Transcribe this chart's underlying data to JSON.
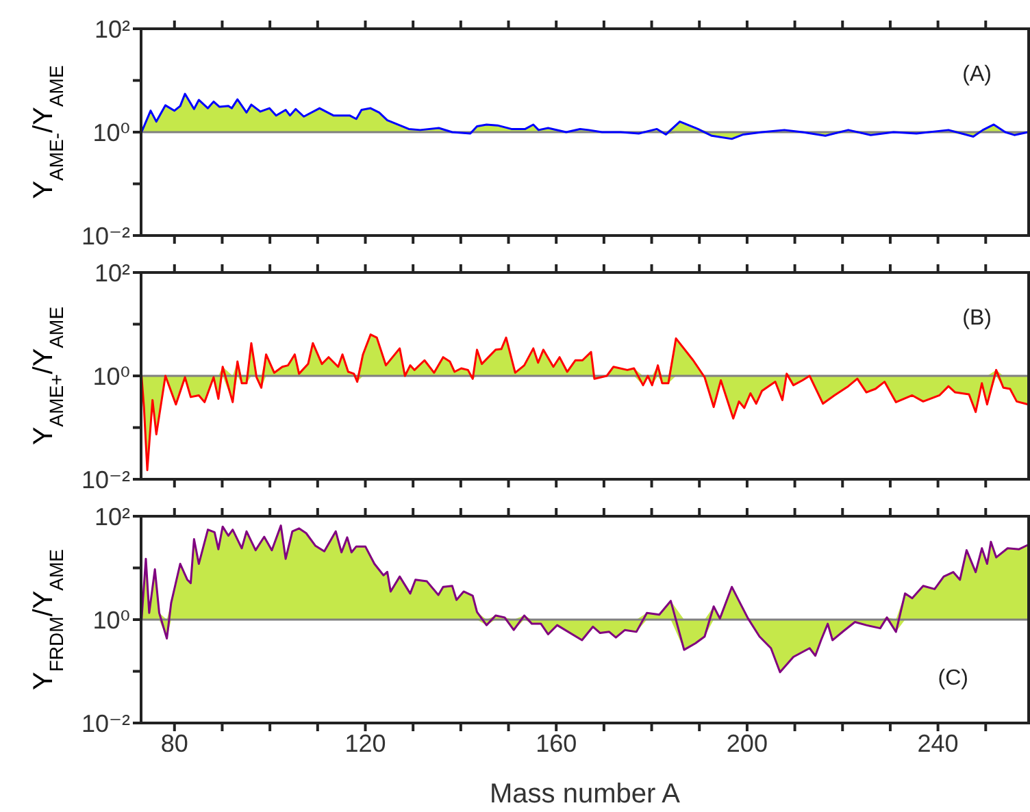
{
  "chart_data": [
    {
      "type": "line",
      "ylabel": "Y$_{AME-}$/Y$_{AME}$",
      "annotations": [
        "(A)"
      ],
      "tick_labels": "y",
      "log": "y",
      "xlim": [
        73,
        259
      ],
      "xticks": [
        {
          "value": 80,
          "label": null
        },
        {
          "value": 90,
          "label": null
        },
        {
          "value": 100,
          "label": null
        },
        {
          "value": 110,
          "label": null
        },
        {
          "value": 120,
          "label": null
        },
        {
          "value": 130,
          "label": null
        },
        {
          "value": 140,
          "label": null
        },
        {
          "value": 150,
          "label": null
        },
        {
          "value": 160,
          "label": null
        },
        {
          "value": 170,
          "label": null
        },
        {
          "value": 180,
          "label": null
        },
        {
          "value": 190,
          "label": null
        },
        {
          "value": 200,
          "label": null
        },
        {
          "value": 210,
          "label": null
        },
        {
          "value": 220,
          "label": null
        },
        {
          "value": 230,
          "label": null
        },
        {
          "value": 240,
          "label": null
        },
        {
          "value": 250,
          "label": null
        }
      ],
      "ylim": [
        0.01,
        100
      ],
      "yticks": [
        {
          "value": 0.01,
          "label": "10⁻²"
        },
        {
          "value": 0.1,
          "label": null
        },
        {
          "value": 1,
          "label": "10⁰"
        },
        {
          "value": 10,
          "label": null
        },
        {
          "value": 100,
          "label": "10²"
        }
      ],
      "ref_lines": [
        {
          "axis": "y",
          "value": 1,
          "color": "#808080"
        }
      ],
      "x": [
        73.1,
        75,
        76.2,
        78.1,
        80,
        81.2,
        82.2,
        84.1,
        85.1,
        87,
        88.2,
        89.4,
        91.3,
        92,
        93.2,
        95.1,
        96.1,
        98,
        99.9,
        101.3,
        103.3,
        104.2,
        105.4,
        107.1,
        110.4,
        113.3,
        116.7,
        118.1,
        119.2,
        121.1,
        122.9,
        124.6,
        127.7,
        129.1,
        131.5,
        135.4,
        138.2,
        142,
        143.4,
        145.4,
        147.7,
        150.6,
        153.5,
        155.2,
        156.3,
        158.3,
        162.1,
        165,
        166.8,
        169.6,
        173.5,
        177.3,
        181.1,
        183,
        185.9,
        189.7,
        192.6,
        196.8,
        199.2,
        203.1,
        207.8,
        211.6,
        216.4,
        221.2,
        225.9,
        230.7,
        235.5,
        242.2,
        247.4,
        249.4,
        251.7,
        254.1,
        256,
        258.9
      ],
      "series": [
        {
          "color": "#0000ff",
          "values": [
            1,
            2.6,
            1.6,
            3.3,
            2.6,
            3.2,
            5.5,
            2.8,
            4.2,
            2.9,
            3.9,
            3.1,
            3.2,
            2.9,
            4.3,
            2.4,
            3.4,
            2.5,
            2.9,
            2.1,
            2.7,
            2.1,
            2.8,
            2,
            2.9,
            2.1,
            2.1,
            1.8,
            2.7,
            2.9,
            2.4,
            1.7,
            1.3,
            1.15,
            1.1,
            1.2,
            1,
            0.94,
            1.3,
            1.4,
            1.35,
            1.15,
            1.15,
            1.4,
            1.1,
            1.2,
            1,
            1.15,
            1.1,
            1,
            1,
            0.94,
            1.15,
            0.9,
            1.6,
            1.15,
            0.85,
            0.74,
            0.9,
            1,
            1.1,
            1,
            0.85,
            1.1,
            0.88,
            1,
            0.94,
            1.1,
            0.82,
            1.1,
            1.4,
            1,
            0.88,
            1
          ],
          "lower": [
            1,
            1,
            1,
            1,
            1,
            1,
            1,
            1,
            1,
            1,
            1,
            1,
            1,
            1,
            1,
            1,
            1,
            1,
            1,
            1,
            1,
            1,
            1,
            1,
            1,
            1,
            1,
            1,
            1,
            1,
            1,
            1,
            1,
            1,
            1,
            1,
            1,
            0.94,
            1,
            1,
            1,
            1,
            1,
            1,
            1,
            1,
            1,
            1,
            1,
            1,
            1,
            0.94,
            1,
            0.9,
            1,
            1,
            0.85,
            0.74,
            0.9,
            1,
            1,
            1,
            0.85,
            1,
            0.88,
            1,
            0.94,
            1,
            0.82,
            1,
            1,
            1,
            0.88,
            1
          ],
          "upper": [
            1,
            2.6,
            1.6,
            3.3,
            2.6,
            3.2,
            5.5,
            2.8,
            4.2,
            2.9,
            3.9,
            3.1,
            3.2,
            2.9,
            4.3,
            2.4,
            3.4,
            2.5,
            2.9,
            2.1,
            2.7,
            2.1,
            2.8,
            2,
            2.9,
            2.1,
            2.1,
            1.8,
            2.7,
            2.9,
            2.4,
            1.7,
            1.3,
            1.15,
            1.1,
            1.2,
            1,
            1,
            1.3,
            1.4,
            1.35,
            1.15,
            1.15,
            1.4,
            1.1,
            1.2,
            1,
            1.15,
            1.1,
            1,
            1,
            1,
            1.15,
            1,
            1.6,
            1.15,
            1,
            1,
            1,
            1,
            1.1,
            1,
            1,
            1.1,
            1,
            1,
            1,
            1.1,
            1,
            1.1,
            1.4,
            1,
            1,
            1
          ]
        }
      ]
    },
    {
      "type": "line",
      "ylabel": "Y$_{AME+}$/Y$_{AME}$",
      "annotations": [
        "(B)"
      ],
      "tick_labels": "y",
      "log": "y",
      "xlim": [
        73,
        259
      ],
      "xticks": [
        {
          "value": 80,
          "label": null
        },
        {
          "value": 90,
          "label": null
        },
        {
          "value": 100,
          "label": null
        },
        {
          "value": 110,
          "label": null
        },
        {
          "value": 120,
          "label": null
        },
        {
          "value": 130,
          "label": null
        },
        {
          "value": 140,
          "label": null
        },
        {
          "value": 150,
          "label": null
        },
        {
          "value": 160,
          "label": null
        },
        {
          "value": 170,
          "label": null
        },
        {
          "value": 180,
          "label": null
        },
        {
          "value": 190,
          "label": null
        },
        {
          "value": 200,
          "label": null
        },
        {
          "value": 210,
          "label": null
        },
        {
          "value": 220,
          "label": null
        },
        {
          "value": 230,
          "label": null
        },
        {
          "value": 240,
          "label": null
        },
        {
          "value": 250,
          "label": null
        }
      ],
      "ylim": [
        0.01,
        100
      ],
      "yticks": [
        {
          "value": 0.01,
          "label": "10⁻²"
        },
        {
          "value": 0.1,
          "label": null
        },
        {
          "value": 1,
          "label": "10⁰"
        },
        {
          "value": 10,
          "label": null
        },
        {
          "value": 100,
          "label": "10²"
        }
      ],
      "ref_lines": [
        {
          "axis": "y",
          "value": 1,
          "color": "#808080"
        }
      ],
      "x": [
        73.1,
        73.6,
        74.3,
        75.4,
        76.2,
        78.1,
        80.3,
        82.2,
        83.4,
        85.1,
        86.3,
        88.2,
        89.2,
        90.1,
        92.2,
        93.2,
        94.1,
        95.1,
        96.1,
        97.2,
        98.2,
        99.2,
        100.9,
        102.6,
        103.8,
        105.2,
        106.1,
        108,
        109,
        110.9,
        112.3,
        114.3,
        115.2,
        116.4,
        117.6,
        118.3,
        119.5,
        121.1,
        122.4,
        124.3,
        127.2,
        128.3,
        129.4,
        130.3,
        132.4,
        134.4,
        136.3,
        137.7,
        138.7,
        140.1,
        141.5,
        142.5,
        143.4,
        144.4,
        147.3,
        148.5,
        149.5,
        151.4,
        153.3,
        155.2,
        156.2,
        157.3,
        159.4,
        160.7,
        162.3,
        164,
        165.5,
        167.3,
        168,
        170.6,
        172,
        174.9,
        176.3,
        178.2,
        179.2,
        180.1,
        181.3,
        182.2,
        183.5,
        185.1,
        188.7,
        191.1,
        193,
        194.5,
        197.1,
        198.3,
        199.4,
        200.7,
        201.9,
        203.1,
        205.9,
        207.4,
        208.3,
        209.7,
        211.6,
        213.1,
        215.9,
        218.3,
        221.2,
        223.1,
        225,
        226.9,
        228.8,
        231.2,
        234.6,
        236.9,
        240.3,
        242.2,
        243.6,
        246.5,
        247.9,
        249.2,
        250.3,
        252.2,
        253.7,
        255.1,
        256.5,
        258.9
      ],
      "series": [
        {
          "color": "#ff0000",
          "values": [
            1,
            0.25,
            0.015,
            0.34,
            0.074,
            1,
            0.28,
            0.94,
            0.39,
            0.42,
            0.31,
            0.94,
            0.36,
            1.5,
            0.31,
            1.9,
            0.72,
            0.72,
            4.3,
            0.94,
            0.59,
            2.6,
            1.15,
            1.5,
            1.6,
            2.6,
            1.1,
            1.7,
            4.3,
            1.7,
            2.3,
            1.5,
            2.6,
            1.2,
            1.1,
            0.77,
            2.6,
            6.3,
            5.5,
            1.6,
            3.4,
            1,
            1.6,
            1.3,
            2,
            1.15,
            2.3,
            1.9,
            1.2,
            1.4,
            1.3,
            0.88,
            3.2,
            1.7,
            3.2,
            3.3,
            5.5,
            1.15,
            1.6,
            3.4,
            1.8,
            3.2,
            1.5,
            2.3,
            1.2,
            2,
            2,
            2.9,
            0.88,
            1,
            1.5,
            1.3,
            1.4,
            0.66,
            1,
            0.66,
            1.6,
            0.72,
            0.72,
            5.3,
            2,
            0.94,
            0.25,
            0.82,
            0.15,
            0.32,
            0.24,
            0.46,
            0.29,
            0.51,
            0.77,
            0.34,
            1.1,
            0.66,
            0.82,
            1,
            0.29,
            0.42,
            0.63,
            0.88,
            0.48,
            0.56,
            0.77,
            0.31,
            0.42,
            0.32,
            0.42,
            0.63,
            0.48,
            0.44,
            0.2,
            0.72,
            0.28,
            1.3,
            0.59,
            0.56,
            0.32,
            0.28
          ],
          "lower": [
            1,
            0.25,
            0.015,
            0.34,
            0.074,
            1,
            0.28,
            0.94,
            0.39,
            0.42,
            0.31,
            0.94,
            0.36,
            1,
            0.31,
            1,
            0.72,
            0.72,
            1,
            0.94,
            0.59,
            1,
            1,
            1,
            1,
            1,
            1,
            1,
            1,
            1,
            1,
            1,
            1,
            1,
            1,
            0.77,
            1,
            1,
            1,
            1,
            1,
            1,
            1,
            1,
            1,
            1,
            1,
            1,
            1,
            1,
            1,
            0.88,
            1,
            1,
            1,
            1,
            1,
            1,
            1,
            1,
            1,
            1,
            1,
            1,
            1,
            1,
            1,
            1,
            0.88,
            1,
            1,
            1,
            1,
            0.66,
            1,
            0.66,
            1,
            0.72,
            0.72,
            1,
            1,
            0.94,
            0.25,
            0.82,
            0.15,
            0.32,
            0.24,
            0.46,
            0.29,
            0.51,
            0.77,
            0.34,
            1,
            0.66,
            0.82,
            1,
            0.29,
            0.42,
            0.63,
            0.88,
            0.48,
            0.56,
            0.77,
            0.31,
            0.42,
            0.32,
            0.42,
            0.63,
            0.48,
            0.44,
            0.2,
            0.72,
            0.28,
            1,
            0.59,
            0.56,
            0.32,
            0.28
          ],
          "upper": [
            1,
            1,
            1,
            1,
            1,
            1,
            1,
            1,
            1,
            1,
            1,
            1,
            1,
            1.5,
            1,
            1.9,
            1,
            1,
            4.3,
            1,
            1,
            2.6,
            1.15,
            1.5,
            1.6,
            2.6,
            1.1,
            1.7,
            4.3,
            1.7,
            2.3,
            1.5,
            2.6,
            1.2,
            1.1,
            1,
            2.6,
            6.3,
            5.5,
            1.6,
            3.4,
            1,
            1.6,
            1.3,
            2,
            1.15,
            2.3,
            1.9,
            1.2,
            1.4,
            1.3,
            1,
            3.2,
            1.7,
            3.2,
            3.3,
            5.5,
            1.15,
            1.6,
            3.4,
            1.8,
            3.2,
            1.5,
            2.3,
            1.2,
            2,
            2,
            2.9,
            1,
            1,
            1.5,
            1.3,
            1.4,
            1,
            1,
            1,
            1.6,
            1,
            1,
            5.3,
            2,
            1,
            1,
            1,
            1,
            1,
            1,
            1,
            1,
            1,
            1,
            1,
            1.1,
            1,
            1,
            1,
            1,
            1,
            1,
            1,
            1,
            1,
            1,
            1,
            1,
            1,
            1,
            1,
            1,
            1,
            1,
            1,
            1,
            1.3,
            1,
            1,
            1,
            1
          ]
        }
      ]
    },
    {
      "type": "line",
      "ylabel": "Y$_{FRDM}$/Y$_{AME}$",
      "xlabel": "Mass number A",
      "annotations": [
        "(C)"
      ],
      "log": "y",
      "xlim": [
        73,
        259
      ],
      "xticks": [
        {
          "value": 80,
          "label": "80"
        },
        {
          "value": 90,
          "label": null
        },
        {
          "value": 100,
          "label": null
        },
        {
          "value": 110,
          "label": null
        },
        {
          "value": 120,
          "label": "120"
        },
        {
          "value": 130,
          "label": null
        },
        {
          "value": 140,
          "label": null
        },
        {
          "value": 150,
          "label": null
        },
        {
          "value": 160,
          "label": "160"
        },
        {
          "value": 170,
          "label": null
        },
        {
          "value": 180,
          "label": null
        },
        {
          "value": 190,
          "label": null
        },
        {
          "value": 200,
          "label": "200"
        },
        {
          "value": 210,
          "label": null
        },
        {
          "value": 220,
          "label": null
        },
        {
          "value": 230,
          "label": null
        },
        {
          "value": 240,
          "label": "240"
        },
        {
          "value": 250,
          "label": null
        }
      ],
      "ylim": [
        0.01,
        100
      ],
      "yticks": [
        {
          "value": 0.01,
          "label": "10⁻²"
        },
        {
          "value": 0.1,
          "label": null
        },
        {
          "value": 1,
          "label": "10⁰"
        },
        {
          "value": 10,
          "label": null
        },
        {
          "value": 100,
          "label": "10²"
        }
      ],
      "ref_lines": [
        {
          "axis": "y",
          "value": 1,
          "color": "#808080"
        }
      ],
      "x": [
        73.1,
        74,
        74.7,
        75.9,
        76.8,
        78.4,
        79.3,
        81.2,
        82.7,
        83.4,
        84.1,
        85.1,
        87,
        88.4,
        89.2,
        90.1,
        91.3,
        92.2,
        94.1,
        95.1,
        97,
        98.8,
        100.4,
        102.3,
        103.3,
        104.7,
        106.1,
        107.6,
        109.5,
        111.4,
        113.8,
        115,
        116.2,
        117.1,
        118.1,
        120,
        121.9,
        123.8,
        124.6,
        125.3,
        127.2,
        129.4,
        130.5,
        132.9,
        135.3,
        136.3,
        138.2,
        139.1,
        140.6,
        142.5,
        143.4,
        145.4,
        147.3,
        149.2,
        151.1,
        153.3,
        154.9,
        156.8,
        158.3,
        160.2,
        165.4,
        167.7,
        169.2,
        171.1,
        172.5,
        174.4,
        176.8,
        179,
        181.6,
        184,
        186.8,
        189.2,
        191.1,
        193,
        194.3,
        196.8,
        198.3,
        200.2,
        202.6,
        205,
        206.9,
        209.7,
        213.1,
        214.3,
        215.5,
        216.9,
        217.9,
        220.2,
        222.6,
        225,
        227.9,
        229.3,
        231.2,
        233.1,
        234.6,
        236.9,
        239.3,
        241.2,
        243.2,
        244.6,
        246,
        247.9,
        249.2,
        250.3,
        251.1,
        252.2,
        254.6,
        257,
        258.9
      ],
      "series": [
        {
          "color": "#800080",
          "values": [
            1,
            15,
            1.35,
            9.4,
            1.35,
            0.43,
            2.1,
            12,
            5.9,
            5.1,
            36,
            12,
            55,
            49,
            23,
            63,
            42,
            55,
            24,
            51,
            22,
            40,
            22,
            66,
            15,
            51,
            58,
            47,
            27,
            21,
            51,
            20,
            39,
            20,
            26,
            26,
            12,
            7.2,
            8.4,
            3.5,
            6.8,
            3.2,
            5.9,
            5.5,
            3,
            4.3,
            4.5,
            2.4,
            3.5,
            2.9,
            1.4,
            0.78,
            1.2,
            1.1,
            0.63,
            1.2,
            0.83,
            0.83,
            0.52,
            0.78,
            0.4,
            0.73,
            0.55,
            0.58,
            0.45,
            0.63,
            0.58,
            1.35,
            1.25,
            2.3,
            0.26,
            0.35,
            0.47,
            1.8,
            1.05,
            4.3,
            2.3,
            1.05,
            0.47,
            0.28,
            0.096,
            0.19,
            0.28,
            0.2,
            0.4,
            0.83,
            0.4,
            0.6,
            0.9,
            0.78,
            0.68,
            1.1,
            0.58,
            3.2,
            2.6,
            4.5,
            3.9,
            6.8,
            8.3,
            5.9,
            22,
            8.3,
            24,
            12,
            32,
            16,
            24,
            23,
            28
          ],
          "lower": [
            1,
            1,
            1,
            1,
            1,
            0.43,
            1,
            1,
            1,
            1,
            1,
            1,
            1,
            1,
            1,
            1,
            1,
            1,
            1,
            1,
            1,
            1,
            1,
            1,
            1,
            1,
            1,
            1,
            1,
            1,
            1,
            1,
            1,
            1,
            1,
            1,
            1,
            1,
            1,
            1,
            1,
            1,
            1,
            1,
            1,
            1,
            1,
            1,
            1,
            1,
            1,
            0.78,
            1,
            1,
            0.63,
            1,
            0.83,
            0.83,
            0.52,
            0.78,
            0.4,
            0.73,
            0.55,
            0.58,
            0.45,
            0.63,
            0.58,
            1,
            1,
            1,
            0.26,
            0.35,
            0.47,
            1,
            1,
            1,
            1,
            1,
            0.47,
            0.28,
            0.096,
            0.19,
            0.28,
            0.2,
            0.4,
            0.83,
            0.4,
            0.6,
            0.9,
            0.78,
            0.68,
            1,
            0.58,
            1,
            1,
            1,
            1,
            1,
            1,
            1,
            1,
            1,
            1,
            1,
            1,
            1,
            1,
            1,
            1
          ],
          "upper": [
            1,
            15,
            1.35,
            9.4,
            1.35,
            1,
            2.1,
            12,
            5.9,
            5.1,
            36,
            12,
            55,
            49,
            23,
            63,
            42,
            55,
            24,
            51,
            22,
            40,
            22,
            66,
            15,
            51,
            58,
            47,
            27,
            21,
            51,
            20,
            39,
            20,
            26,
            26,
            12,
            7.2,
            8.4,
            3.5,
            6.8,
            3.2,
            5.9,
            5.5,
            3,
            4.3,
            4.5,
            2.4,
            3.5,
            2.9,
            1.4,
            1,
            1.2,
            1.1,
            1,
            1.2,
            1,
            1,
            1,
            1,
            1,
            1,
            1,
            1,
            1,
            1,
            1,
            1.35,
            1.25,
            2.3,
            1,
            1,
            1,
            1.8,
            1.05,
            4.3,
            2.3,
            1.05,
            1,
            1,
            1,
            1,
            1,
            1,
            1,
            1,
            1,
            1,
            1,
            1,
            1,
            1.1,
            1,
            3.2,
            2.6,
            4.5,
            3.9,
            6.8,
            8.3,
            5.9,
            22,
            8.3,
            24,
            12,
            32,
            16,
            24,
            23,
            28
          ]
        }
      ]
    }
  ]
}
